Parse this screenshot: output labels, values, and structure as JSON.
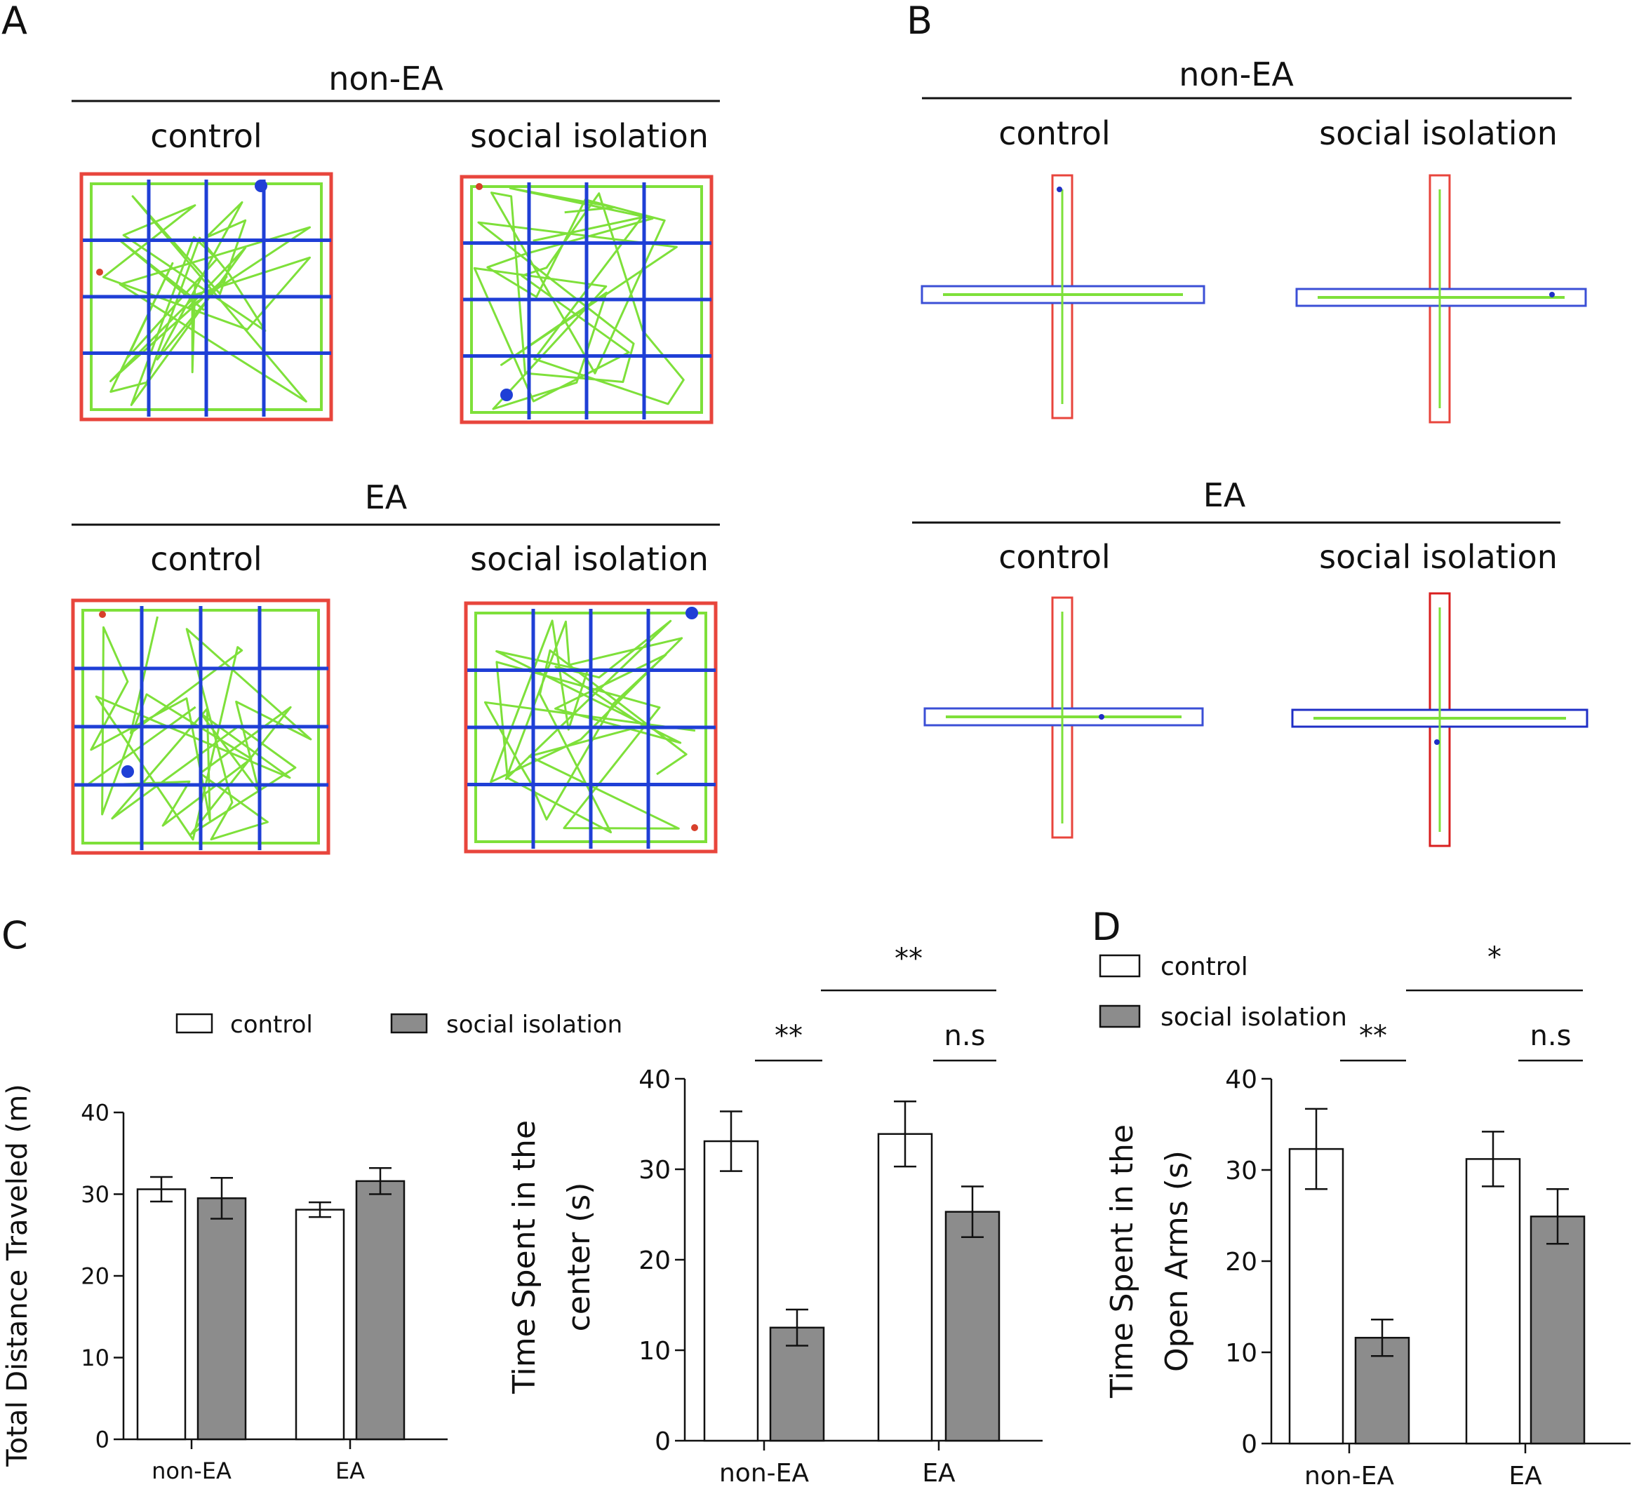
{
  "panels": {
    "A": {
      "letter": "A",
      "groups": [
        {
          "title": "non-EA",
          "conditions": [
            "control",
            "social isolation"
          ]
        },
        {
          "title": "EA",
          "conditions": [
            "control",
            "social isolation"
          ]
        }
      ]
    },
    "B": {
      "letter": "B",
      "groups": [
        {
          "title": "non-EA",
          "conditions": [
            "control",
            "social isolation"
          ]
        },
        {
          "title": "EA",
          "conditions": [
            "control",
            "social isolation"
          ]
        }
      ]
    },
    "C": {
      "letter": "C"
    },
    "D": {
      "letter": "D"
    }
  },
  "legend": {
    "control": "control",
    "social_isolation": "social isolation"
  },
  "colors": {
    "control_fill": "#ffffff",
    "isolation_fill": "#8c8c8c",
    "arena_border": "#e8453c",
    "grid_line": "#1f3fd6",
    "track": "#7ee03a"
  },
  "chart_data": [
    {
      "id": "distance",
      "type": "bar",
      "title": "",
      "ylabel": "Total Distance Traveled (m)",
      "ylabel_lines": [
        "Total Distance Traveled  (m)"
      ],
      "categories": [
        "non-EA",
        "EA"
      ],
      "ylim": [
        0,
        40
      ],
      "yticks": [
        "0",
        "10",
        "20",
        "30",
        "40"
      ],
      "series": [
        {
          "name": "control",
          "values": [
            30.6,
            28.1
          ],
          "errors": [
            1.5,
            0.9
          ]
        },
        {
          "name": "social isolation",
          "values": [
            29.5,
            31.6
          ],
          "errors": [
            2.5,
            1.6
          ]
        }
      ],
      "significance": []
    },
    {
      "id": "center_time",
      "type": "bar",
      "title": "",
      "ylabel": "Time Spent in the center (s)",
      "ylabel_lines": [
        "Time Spent in the",
        "center   (s)"
      ],
      "categories": [
        "non-EA",
        "EA"
      ],
      "ylim": [
        0,
        40
      ],
      "yticks": [
        "0",
        "10",
        "20",
        "30",
        "40"
      ],
      "series": [
        {
          "name": "control",
          "values": [
            33.1,
            33.9
          ],
          "errors": [
            3.3,
            3.6
          ]
        },
        {
          "name": "social isolation",
          "values": [
            12.5,
            25.3
          ],
          "errors": [
            2.0,
            2.8
          ]
        }
      ],
      "significance": [
        {
          "label": "**",
          "scope": "within non-EA"
        },
        {
          "label": "n.s",
          "scope": "within EA"
        },
        {
          "label": "**",
          "scope": "between isolation groups"
        }
      ]
    },
    {
      "id": "open_arms_time",
      "type": "bar",
      "title": "",
      "ylabel": "Time Spent in the Open Arms (s)",
      "ylabel_lines": [
        "Time Spent in the",
        "Open Arms   (s)"
      ],
      "categories": [
        "non-EA",
        "EA"
      ],
      "ylim": [
        0,
        40
      ],
      "yticks": [
        "0",
        "10",
        "20",
        "30",
        "40"
      ],
      "series": [
        {
          "name": "control",
          "values": [
            32.3,
            31.2
          ],
          "errors": [
            4.4,
            3.0
          ]
        },
        {
          "name": "social isolation",
          "values": [
            11.6,
            24.9
          ],
          "errors": [
            2.0,
            3.0
          ]
        }
      ],
      "significance": [
        {
          "label": "**",
          "scope": "within non-EA"
        },
        {
          "label": "n.s",
          "scope": "within EA"
        },
        {
          "label": "*",
          "scope": "between isolation groups"
        }
      ]
    }
  ]
}
